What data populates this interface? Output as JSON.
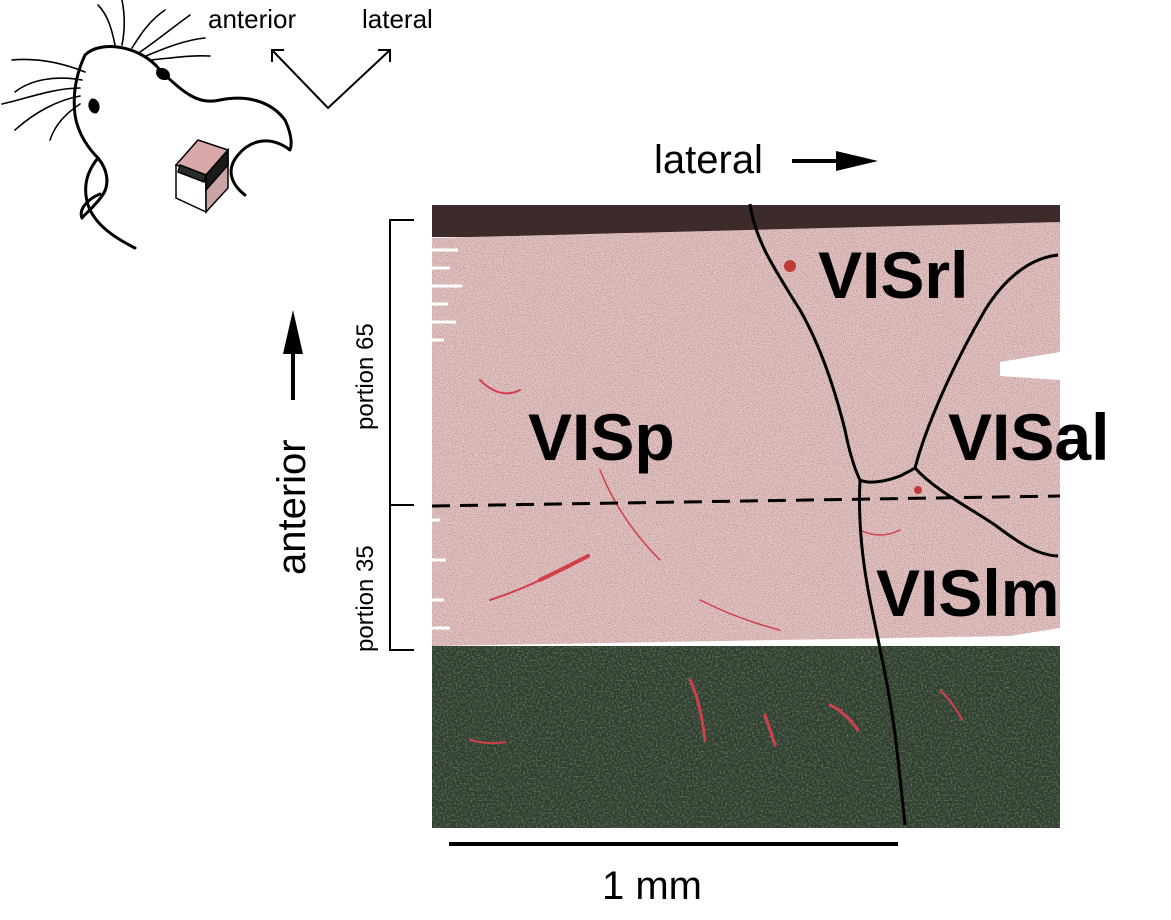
{
  "compass": {
    "anterior": "anterior",
    "lateral": "lateral"
  },
  "axes": {
    "lateral_label": "lateral",
    "anterior_label": "anterior"
  },
  "portions": {
    "upper": "portion 65",
    "lower": "portion 35"
  },
  "regions": {
    "visp": "VISp",
    "visrl": "VISrl",
    "visal": "VISal",
    "vislm": "VISlm"
  },
  "scale_bar": {
    "label": "1 mm"
  },
  "colors": {
    "tissue_pink": "#e7c3c3",
    "tissue_dark_top": "#3d2a2a",
    "fluorescence_green": "#2f3d2e",
    "vessel_red": "#d0404a",
    "line": "#000000"
  }
}
